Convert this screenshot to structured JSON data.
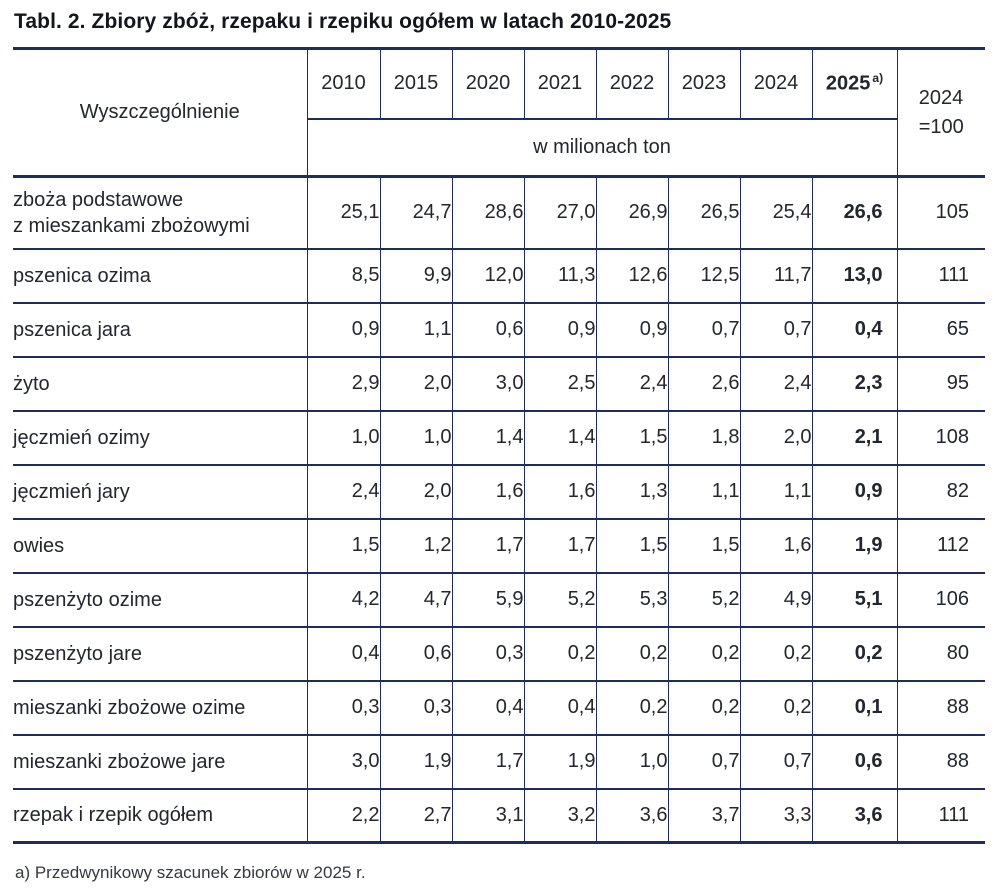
{
  "title": "Tabl. 2. Zbiory zbóż, rzepaku i rzepiku ogółem w latach 2010-2025",
  "table": {
    "spec_header": "Wyszczególnienie",
    "year_headers": [
      "2010",
      "2015",
      "2020",
      "2021",
      "2022",
      "2023",
      "2024"
    ],
    "estimate_year": "2025",
    "estimate_note_marker": "a)",
    "unit_header": "w milionach ton",
    "index_header_line1": "2024",
    "index_header_line2": "=100",
    "rows": [
      {
        "label": "zboża podstawowe\nz mieszankami zbożowymi",
        "values": [
          "25,1",
          "24,7",
          "28,6",
          "27,0",
          "26,9",
          "26,5",
          "25,4"
        ],
        "estimate": "26,6",
        "index": "105"
      },
      {
        "label": "pszenica ozima",
        "values": [
          "8,5",
          "9,9",
          "12,0",
          "11,3",
          "12,6",
          "12,5",
          "11,7"
        ],
        "estimate": "13,0",
        "index": "111"
      },
      {
        "label": "pszenica jara",
        "values": [
          "0,9",
          "1,1",
          "0,6",
          "0,9",
          "0,9",
          "0,7",
          "0,7"
        ],
        "estimate": "0,4",
        "index": "65"
      },
      {
        "label": "żyto",
        "values": [
          "2,9",
          "2,0",
          "3,0",
          "2,5",
          "2,4",
          "2,6",
          "2,4"
        ],
        "estimate": "2,3",
        "index": "95"
      },
      {
        "label": "jęczmień ozimy",
        "values": [
          "1,0",
          "1,0",
          "1,4",
          "1,4",
          "1,5",
          "1,8",
          "2,0"
        ],
        "estimate": "2,1",
        "index": "108"
      },
      {
        "label": "jęczmień jary",
        "values": [
          "2,4",
          "2,0",
          "1,6",
          "1,6",
          "1,3",
          "1,1",
          "1,1"
        ],
        "estimate": "0,9",
        "index": "82"
      },
      {
        "label": "owies",
        "values": [
          "1,5",
          "1,2",
          "1,7",
          "1,7",
          "1,5",
          "1,5",
          "1,6"
        ],
        "estimate": "1,9",
        "index": "112"
      },
      {
        "label": "pszenżyto ozime",
        "values": [
          "4,2",
          "4,7",
          "5,9",
          "5,2",
          "5,3",
          "5,2",
          "4,9"
        ],
        "estimate": "5,1",
        "index": "106"
      },
      {
        "label": "pszenżyto jare",
        "values": [
          "0,4",
          "0,6",
          "0,3",
          "0,2",
          "0,2",
          "0,2",
          "0,2"
        ],
        "estimate": "0,2",
        "index": "80"
      },
      {
        "label": "mieszanki zbożowe ozime",
        "values": [
          "0,3",
          "0,3",
          "0,4",
          "0,4",
          "0,2",
          "0,2",
          "0,2"
        ],
        "estimate": "0,1",
        "index": "88"
      },
      {
        "label": "mieszanki zbożowe jare",
        "values": [
          "3,0",
          "1,9",
          "1,7",
          "1,9",
          "1,0",
          "0,7",
          "0,7"
        ],
        "estimate": "0,6",
        "index": "88"
      },
      {
        "label": "rzepak i rzepik ogółem",
        "values": [
          "2,2",
          "2,7",
          "3,1",
          "3,2",
          "3,6",
          "3,7",
          "3,3"
        ],
        "estimate": "3,6",
        "index": "111"
      }
    ]
  },
  "footnote": "a) Przedwynikowy szacunek zbiorów w 2025 r.",
  "colors": {
    "border": "#1e2c5e",
    "text": "#23262f",
    "title": "#14161d"
  }
}
